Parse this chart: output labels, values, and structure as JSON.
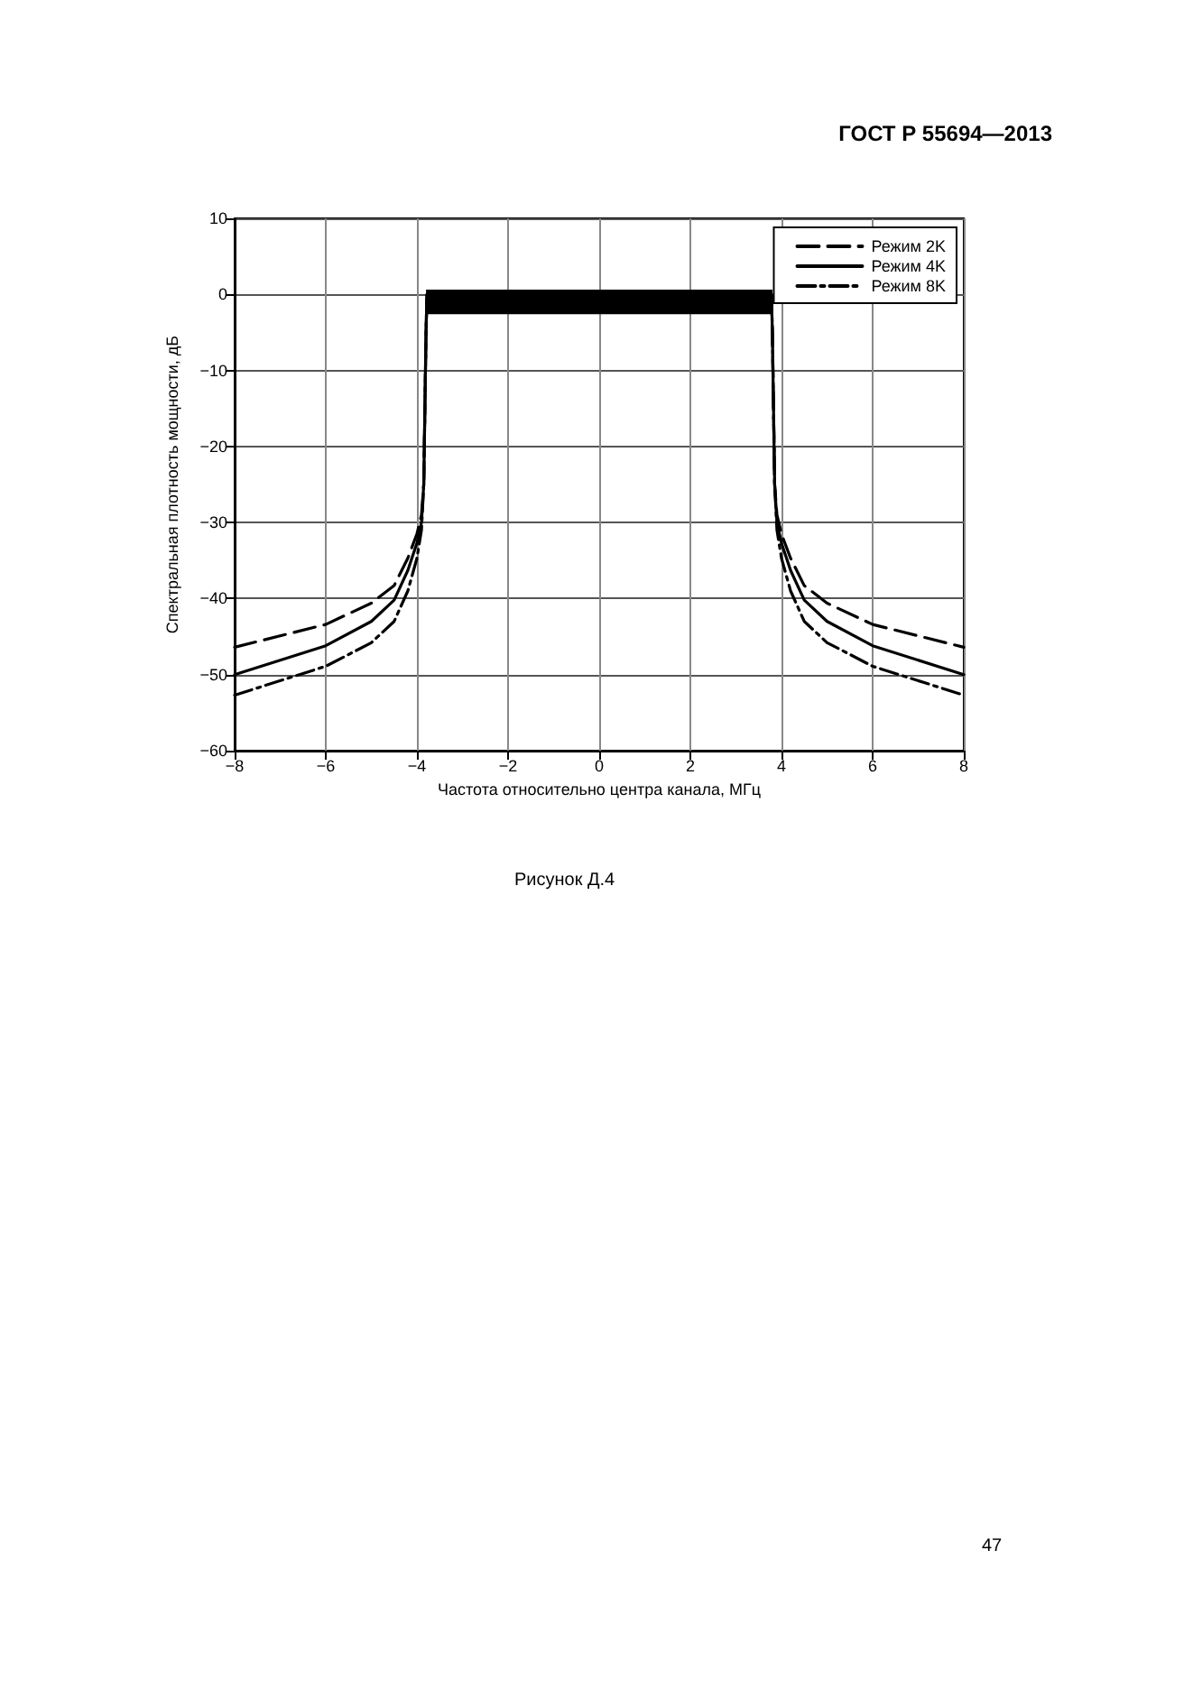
{
  "chart_data": {
    "type": "line",
    "xlabel": "Частота относительно центра канала, МГц",
    "ylabel": "Спектральная плотность мощности, дБ",
    "annotations": [
      "ГОСТ Р 55694—2013",
      "Рисунок Д.4",
      "47"
    ],
    "xlim": [
      -8,
      8
    ],
    "xticks": [
      -8,
      -6,
      -4,
      -2,
      0,
      2,
      4,
      6,
      8
    ],
    "ylim": [
      -60,
      10
    ],
    "yticks": [
      -60,
      -50,
      -40,
      -30,
      -20,
      -10,
      0,
      10
    ],
    "grid": true,
    "legend": "top right",
    "marker": "none",
    "series": [
      {
        "name": "Режим 2K",
        "color": "#000000",
        "line_style": "dashed",
        "x": [
          -8,
          -6,
          -5,
          -4.5,
          -4.2,
          -4,
          -3.9,
          -3.85,
          -3.8,
          -3.78,
          0,
          3.78,
          3.8,
          3.85,
          3.9,
          4,
          4.2,
          4.5,
          5,
          6,
          8
        ],
        "values": [
          -46.4,
          -43.4,
          -40.6,
          -38.3,
          -34.7,
          -31.5,
          -29,
          -25,
          -5,
          0,
          null,
          0,
          -5,
          -25,
          -29,
          -31.5,
          -34.7,
          -38.3,
          -40.6,
          -43.4,
          -46.4
        ]
      },
      {
        "name": "Режим 4K",
        "color": "#000000",
        "line_style": "solid",
        "x": [
          -8,
          -6,
          -5,
          -4.5,
          -4.2,
          -4,
          -3.9,
          -3.85,
          -3.8,
          -3.78,
          0,
          3.78,
          3.8,
          3.85,
          3.9,
          4,
          4.2,
          4.5,
          5,
          6,
          8
        ],
        "values": [
          -50,
          -46.2,
          -43,
          -40.2,
          -36.3,
          -32.7,
          -30,
          -25,
          -5,
          0,
          0,
          0,
          -5,
          -25,
          -30,
          -32.7,
          -36.3,
          -40.2,
          -43,
          -46.2,
          -50
        ],
        "lower": [
          null,
          null,
          null,
          null,
          null,
          null,
          null,
          null,
          null,
          -2.5,
          -2.5,
          -2.5,
          null,
          null,
          null,
          null,
          null,
          null,
          null,
          null,
          null
        ],
        "upper": [
          null,
          null,
          null,
          null,
          null,
          null,
          null,
          null,
          null,
          0.5,
          0.5,
          0.5,
          null,
          null,
          null,
          null,
          null,
          null,
          null,
          null,
          null
        ]
      },
      {
        "name": "Режим 8K",
        "color": "#000000",
        "line_style": "dashdot",
        "x": [
          -8,
          -6,
          -5,
          -4.5,
          -4.2,
          -4,
          -3.9,
          -3.85,
          -3.8,
          -3.78,
          0,
          3.78,
          3.8,
          3.85,
          3.9,
          4,
          4.2,
          4.5,
          5,
          6,
          8
        ],
        "values": [
          -52.7,
          -48.9,
          -45.8,
          -43,
          -39,
          -34.7,
          -31,
          -25,
          -5,
          0,
          null,
          0,
          -5,
          -25,
          -31,
          -34.7,
          -39,
          -43,
          -45.8,
          -48.9,
          -52.7
        ]
      }
    ]
  }
}
